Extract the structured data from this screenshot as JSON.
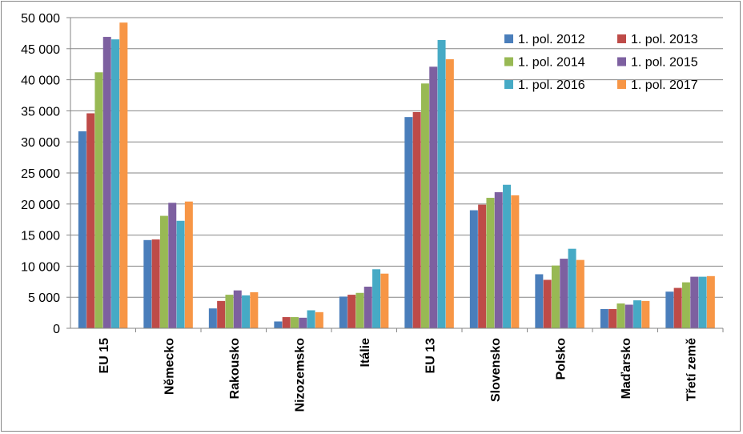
{
  "chart_data": {
    "type": "bar",
    "title": "",
    "xlabel": "",
    "ylabel": "",
    "ylim": [
      0,
      50000
    ],
    "yticks": [
      0,
      5000,
      10000,
      15000,
      20000,
      25000,
      30000,
      35000,
      40000,
      45000,
      50000
    ],
    "ytick_labels": [
      "0",
      "5 000",
      "10 000",
      "15 000",
      "20 000",
      "25 000",
      "30 000",
      "35 000",
      "40 000",
      "45 000",
      "50 000"
    ],
    "grid": "horizontal",
    "legend_position": "top-right",
    "categories": [
      "EU 15",
      "Německo",
      "Rakousko",
      "Nizozemsko",
      "Itálie",
      "EU 13",
      "Slovensko",
      "Polsko",
      "Maďarsko",
      "Třetí země"
    ],
    "series": [
      {
        "name": "1. pol. 2012",
        "color": "#4a7ebb",
        "values": [
          31700,
          14200,
          3200,
          1100,
          5100,
          34000,
          19000,
          8700,
          3100,
          5900
        ]
      },
      {
        "name": "1. pol. 2013",
        "color": "#be4b48",
        "values": [
          34600,
          14300,
          4400,
          1800,
          5400,
          34800,
          19900,
          7800,
          3100,
          6500
        ]
      },
      {
        "name": "1. pol. 2014",
        "color": "#98b954",
        "values": [
          41200,
          18100,
          5400,
          1800,
          5700,
          39400,
          21000,
          10100,
          4000,
          7400
        ]
      },
      {
        "name": "1. pol. 2015",
        "color": "#7d60a0",
        "values": [
          46900,
          20200,
          6100,
          1700,
          6700,
          42100,
          21900,
          11200,
          3800,
          8300
        ]
      },
      {
        "name": "1. pol. 2016",
        "color": "#46aac5",
        "values": [
          46500,
          17300,
          5300,
          2900,
          9500,
          46400,
          23100,
          12800,
          4500,
          8300
        ]
      },
      {
        "name": "1. pol. 2017",
        "color": "#f79646",
        "values": [
          49200,
          20400,
          5800,
          2600,
          8800,
          43300,
          21400,
          11000,
          4400,
          8400
        ]
      }
    ]
  }
}
